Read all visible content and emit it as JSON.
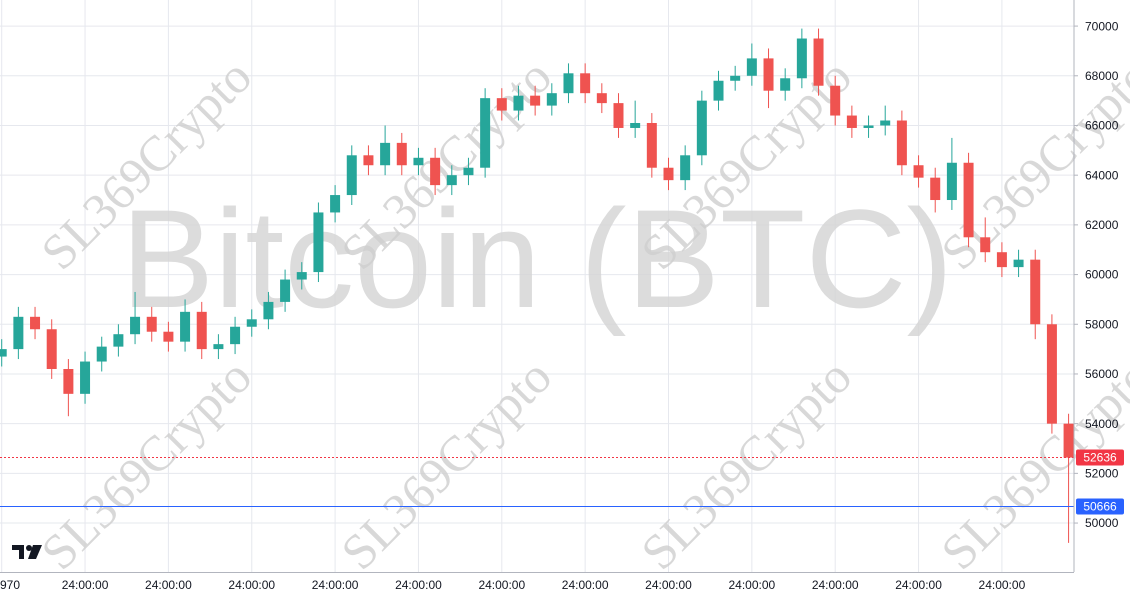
{
  "chart_data": {
    "type": "candlestick",
    "watermark": "Bitcoin (BTC)",
    "watermark_tile": "SL369Crypto",
    "categories": [
      "970",
      null,
      null,
      null,
      null,
      "24:00:00",
      null,
      null,
      null,
      null,
      "24:00:00",
      null,
      null,
      null,
      null,
      "24:00:00",
      null,
      null,
      null,
      null,
      "24:00:00",
      null,
      null,
      null,
      null,
      "24:00:00",
      null,
      null,
      null,
      null,
      "24:00:00",
      null,
      null,
      null,
      null,
      "24:00:00",
      null,
      null,
      null,
      null,
      "24:00:00",
      null,
      null,
      null,
      null,
      "24:00:00",
      null,
      null,
      null,
      null,
      "24:00:00",
      null,
      null,
      null,
      null,
      "24:00:00",
      null,
      null,
      null,
      null,
      "24:00:00",
      null,
      null,
      null,
      null
    ],
    "open": [
      56700,
      57000,
      58300,
      57800,
      56200,
      55200,
      56500,
      57100,
      57600,
      58300,
      57700,
      57300,
      58500,
      57000,
      57200,
      57900,
      58200,
      58900,
      59800,
      60100,
      62500,
      63200,
      64800,
      64400,
      65300,
      64400,
      64700,
      63600,
      64000,
      64300,
      67100,
      66600,
      67200,
      66800,
      67300,
      68100,
      67300,
      66900,
      65900,
      66100,
      64300,
      63800,
      64800,
      67000,
      67800,
      68000,
      68700,
      67400,
      67900,
      69500,
      67600,
      66400,
      65900,
      66000,
      66200,
      64400,
      63900,
      63000,
      64500,
      61500,
      60900,
      60300,
      60600,
      58000,
      54000
    ],
    "high": [
      57400,
      58700,
      58700,
      58200,
      56600,
      56900,
      57500,
      58000,
      59300,
      58700,
      58100,
      59000,
      58900,
      57600,
      58300,
      58600,
      59300,
      60200,
      60500,
      62900,
      63600,
      65200,
      65200,
      66000,
      65700,
      65100,
      65100,
      64400,
      64700,
      67500,
      67500,
      67600,
      67600,
      67700,
      68500,
      68500,
      67700,
      67300,
      67000,
      66500,
      64700,
      65200,
      67400,
      68200,
      68400,
      69300,
      69100,
      68300,
      69900,
      69900,
      68000,
      66800,
      66400,
      66800,
      66600,
      64800,
      64300,
      65500,
      64900,
      62300,
      61300,
      61000,
      61000,
      58400,
      54400
    ],
    "low": [
      56300,
      56600,
      57400,
      55800,
      54300,
      54800,
      56100,
      56700,
      57200,
      57300,
      56900,
      56900,
      56600,
      56600,
      56800,
      57500,
      57800,
      58500,
      59400,
      59700,
      62100,
      62800,
      64000,
      64000,
      64000,
      64000,
      63200,
      63200,
      63600,
      63900,
      66200,
      66200,
      66400,
      66400,
      66900,
      66900,
      66500,
      65500,
      65500,
      63900,
      63400,
      63400,
      64400,
      66600,
      67400,
      67600,
      66700,
      67000,
      67500,
      67200,
      66000,
      65500,
      65500,
      65600,
      64000,
      63500,
      62500,
      62600,
      61100,
      60500,
      59900,
      59900,
      57400,
      53600,
      49200
    ],
    "close": [
      57000,
      58300,
      57800,
      56200,
      55200,
      56500,
      57100,
      57600,
      58300,
      57700,
      57300,
      58500,
      57000,
      57200,
      57900,
      58200,
      58900,
      59800,
      60100,
      62500,
      63200,
      64800,
      64400,
      65300,
      64400,
      64700,
      63600,
      64000,
      64300,
      67100,
      66600,
      67200,
      66800,
      67300,
      68100,
      67300,
      66900,
      65900,
      66100,
      64300,
      63800,
      64800,
      67000,
      67800,
      68000,
      68700,
      67400,
      67900,
      69500,
      67600,
      66400,
      65900,
      66000,
      66200,
      64400,
      63900,
      63000,
      64500,
      61500,
      60900,
      60300,
      60600,
      58000,
      54000,
      52636
    ],
    "up_color": "#26a69a",
    "down_color": "#ef5350",
    "ylim": [
      48030,
      71050
    ],
    "yticks": [
      50000,
      52000,
      54000,
      56000,
      58000,
      60000,
      62000,
      64000,
      66000,
      68000,
      70000
    ],
    "grid": true,
    "price_lines": [
      {
        "value": 52636,
        "color": "#f23645",
        "style": "dotted"
      },
      {
        "value": 50666,
        "color": "#2962ff",
        "style": "solid"
      }
    ]
  }
}
